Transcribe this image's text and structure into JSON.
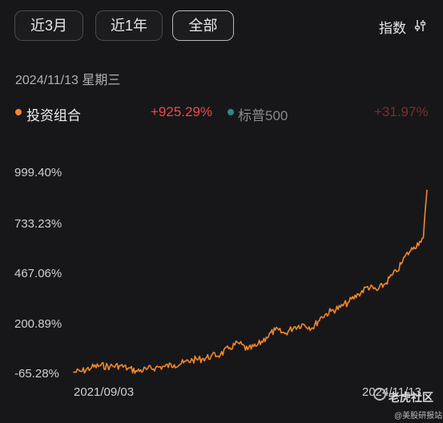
{
  "tabs": {
    "three_month": "近3月",
    "one_year": "近1年",
    "all": "全部",
    "active": "all"
  },
  "index_selector": {
    "label": "指数",
    "icon": "sliders-icon"
  },
  "date_label": "2024/11/13 星期三",
  "legend": {
    "portfolio": {
      "label": "投资组合",
      "value": "+925.29%",
      "color": "#f0882a",
      "value_color": "#ec4a4a"
    },
    "benchmark": {
      "label": "标普500",
      "value": "+31.97%",
      "color": "#2d8a82",
      "value_color": "#7a2f2f"
    }
  },
  "watermark": {
    "line1": "老虎社区",
    "line2": "@美股研报站"
  },
  "chart_data": {
    "type": "line",
    "title": "",
    "xlabel": "",
    "ylabel": "",
    "y_ticks": [
      "999.40%",
      "733.23%",
      "467.06%",
      "200.89%",
      "-65.28%"
    ],
    "y_tick_values": [
      999.4,
      733.23,
      467.06,
      200.89,
      -65.28
    ],
    "ylim": [
      -65.28,
      999.4
    ],
    "x_ticks": [
      "2021/09/03",
      "2024/11/13"
    ],
    "grid": false,
    "series": [
      {
        "name": "投资组合",
        "color": "#f0882a",
        "x": [
          "2021/09/03",
          "2021/10/01",
          "2021/11/01",
          "2021/12/01",
          "2022/01/01",
          "2022/02/01",
          "2022/03/01",
          "2022/04/01",
          "2022/05/01",
          "2022/06/01",
          "2022/07/01",
          "2022/08/01",
          "2022/09/01",
          "2022/10/01",
          "2022/11/01",
          "2022/12/01",
          "2023/01/01",
          "2023/02/01",
          "2023/03/01",
          "2023/04/01",
          "2023/05/01",
          "2023/06/01",
          "2023/07/01",
          "2023/08/01",
          "2023/09/01",
          "2023/10/01",
          "2023/11/01",
          "2023/12/01",
          "2024/01/01",
          "2024/02/01",
          "2024/03/01",
          "2024/04/01",
          "2024/05/01",
          "2024/06/01",
          "2024/07/01",
          "2024/07/20",
          "2024/08/05",
          "2024/08/20",
          "2024/09/01",
          "2024/09/20",
          "2024/10/01",
          "2024/10/20",
          "2024/11/01",
          "2024/11/13"
        ],
        "values": [
          -55,
          -50,
          -30,
          -20,
          -25,
          -20,
          -35,
          -50,
          -40,
          -30,
          -25,
          -15,
          -5,
          10,
          15,
          30,
          40,
          75,
          100,
          65,
          85,
          130,
          170,
          150,
          185,
          200,
          180,
          240,
          270,
          290,
          320,
          360,
          400,
          380,
          420,
          460,
          480,
          520,
          560,
          590,
          610,
          640,
          660,
          912
        ]
      }
    ]
  }
}
